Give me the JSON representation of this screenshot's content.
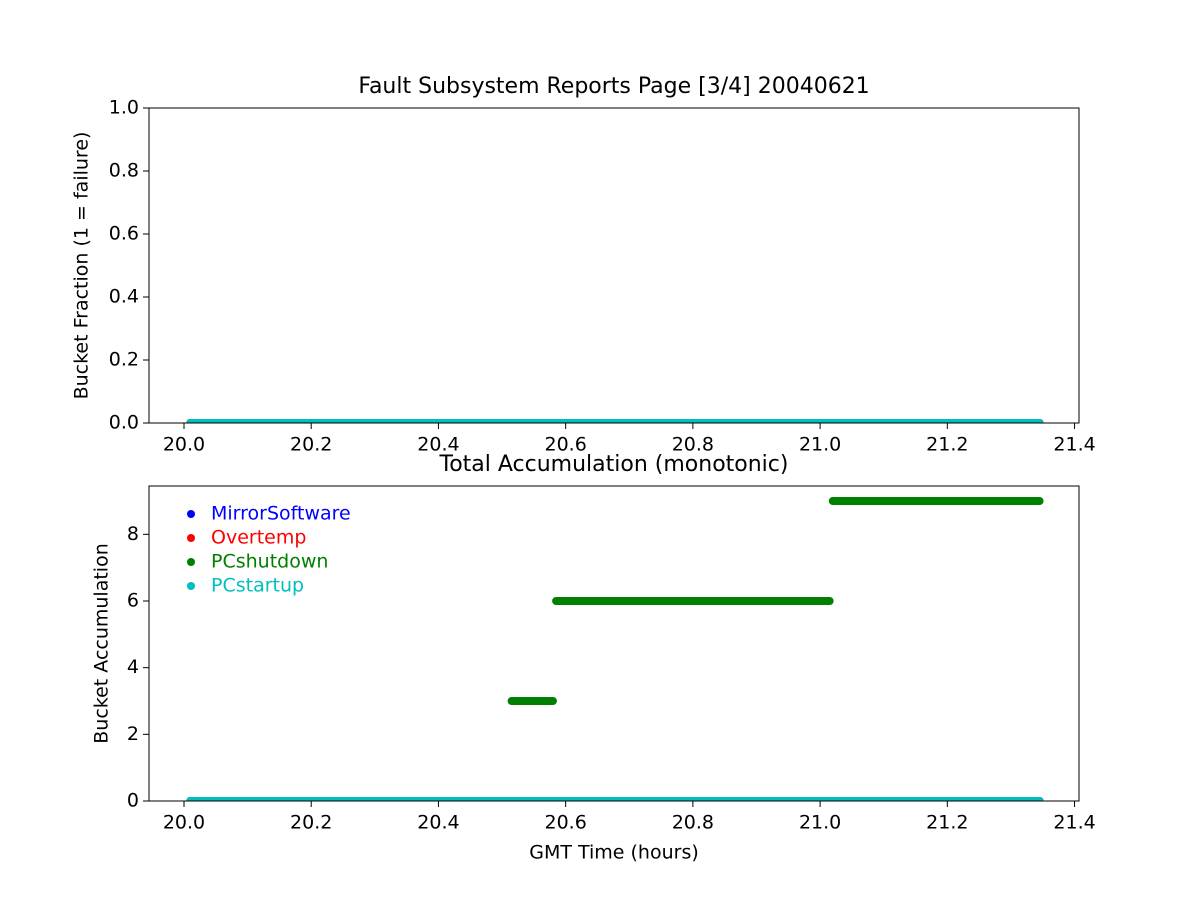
{
  "chart_data": [
    {
      "type": "line",
      "title": "Fault Subsystem Reports Page [3/4] 20040621",
      "ylabel": "Bucket Fraction (1 = failure)",
      "xlim": [
        19.945,
        21.407
      ],
      "xticks": [
        {
          "value": 20.0,
          "label": "20.0"
        },
        20.2,
        20.4,
        20.6,
        20.8,
        {
          "value": 21.0,
          "label": "21.0"
        },
        21.2,
        21.4
      ],
      "ylim": [
        0,
        1
      ],
      "yticks": [
        {
          "value": 0,
          "label": "0.0"
        },
        0.2,
        0.4,
        0.6,
        0.8,
        {
          "value": 1,
          "label": "1.0"
        }
      ],
      "series": [
        {
          "name": "MirrorSoftware",
          "color": "#0000ff",
          "x": [
            20.01,
            21.345
          ],
          "values": [
            0,
            0
          ]
        },
        {
          "name": "Overtemp",
          "color": "#ff0000",
          "x": [
            20.01,
            21.345
          ],
          "values": [
            0,
            0
          ]
        },
        {
          "name": "PCshutdown",
          "color": "#008000",
          "x": [
            20.01,
            21.345
          ],
          "values": [
            0,
            0
          ]
        },
        {
          "name": "PCstartup",
          "color": "#00bfbf",
          "x": [
            20.01,
            21.345
          ],
          "values": [
            0,
            0
          ]
        }
      ]
    },
    {
      "type": "line",
      "title": "Total Accumulation (monotonic)",
      "xlabel": "GMT Time (hours)",
      "ylabel": "Bucket Accumulation",
      "xlim": [
        19.945,
        21.407
      ],
      "xticks": [
        {
          "value": 20.0,
          "label": "20.0"
        },
        20.2,
        20.4,
        20.6,
        20.8,
        {
          "value": 21.0,
          "label": "21.0"
        },
        21.2,
        21.4
      ],
      "ylim": [
        0,
        9.45
      ],
      "yticks": [
        0,
        2,
        4,
        6,
        8
      ],
      "legend": "upper left",
      "series": [
        {
          "name": "MirrorSoftware",
          "color": "#0000ff",
          "x": [
            20.01,
            21.345
          ],
          "values": [
            0,
            0
          ]
        },
        {
          "name": "Overtemp",
          "color": "#ff0000",
          "x": [
            20.01,
            21.345
          ],
          "values": [
            0,
            0
          ]
        },
        {
          "name": "PCshutdown",
          "color": "#008000",
          "x": [
            20.01,
            20.51,
            20.51,
            20.515,
            20.58,
            20.58,
            20.585,
            21.015,
            21.015,
            21.02,
            21.345
          ],
          "values": [
            0,
            0,
            null,
            3,
            3,
            null,
            6,
            6,
            null,
            9,
            9
          ]
        },
        {
          "name": "PCstartup",
          "color": "#00bfbf",
          "x": [
            20.01,
            21.345
          ],
          "values": [
            0,
            0
          ]
        }
      ]
    }
  ]
}
